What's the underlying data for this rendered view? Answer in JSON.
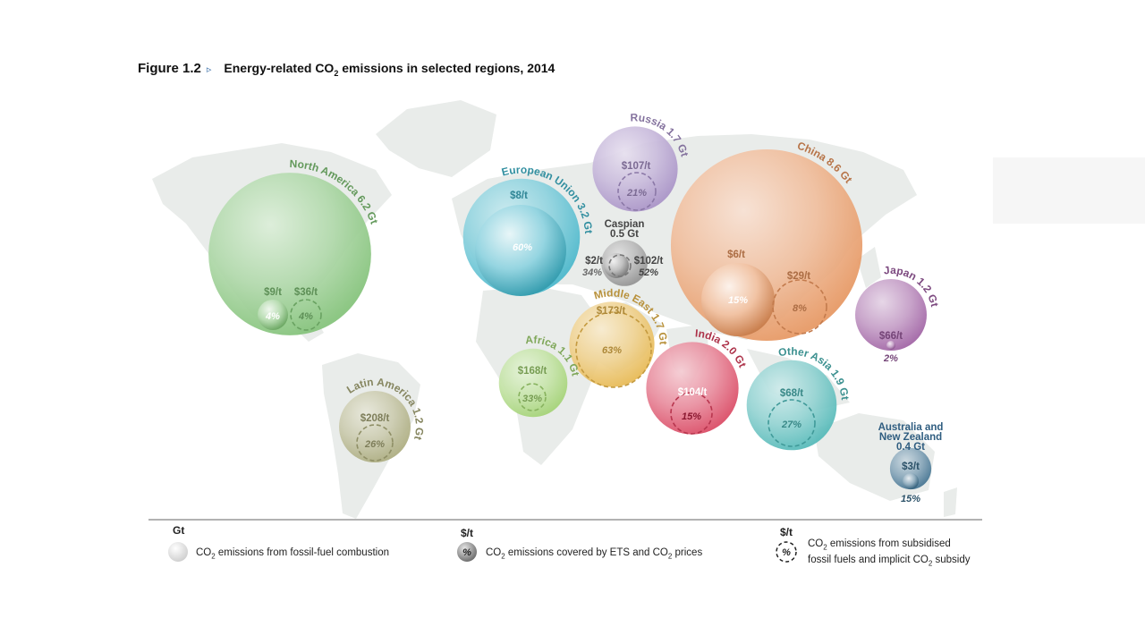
{
  "figure": {
    "label": "Figure 1.2",
    "arrow": "▹",
    "title_pre": "Energy-related CO",
    "title_sub": "2",
    "title_post": " emissions in selected regions, 2014"
  },
  "chart_data": {
    "type": "bubble-map",
    "title": "Energy-related CO2 emissions in selected regions, 2014",
    "units": {
      "emissions": "Gt",
      "price": "$/t"
    },
    "regions": [
      {
        "name": "North America",
        "emissions_gt": 6.2,
        "label": "North America 6.2 Gt",
        "ets_price": "$9/t",
        "ets_share": "4%",
        "subsidy": "$36/t",
        "subsidy_share": "4%",
        "color": "#7cbf72"
      },
      {
        "name": "European Union",
        "emissions_gt": 3.2,
        "label": "European Union 3.2 Gt",
        "ets_price": "$8/t",
        "ets_share": "60%",
        "subsidy": "",
        "subsidy_share": "",
        "color": "#3fb3c8"
      },
      {
        "name": "Russia",
        "emissions_gt": 1.7,
        "label": "Russia 1.7 Gt",
        "ets_price": "",
        "ets_share": "",
        "subsidy": "$107/t",
        "subsidy_share": "21%",
        "color": "#a48dc4"
      },
      {
        "name": "Caspian",
        "emissions_gt": 0.5,
        "label_l1": "Caspian",
        "label_l2": "0.5 Gt",
        "ets_price": "$2/t",
        "ets_share": "34%",
        "subsidy": "$102/t",
        "subsidy_share": "52%",
        "color": "#8c8c8c"
      },
      {
        "name": "China",
        "emissions_gt": 8.6,
        "label": "China 8.6 Gt",
        "ets_price": "$6/t",
        "ets_share": "15%",
        "subsidy": "$29/t",
        "subsidy_share": "8%",
        "color": "#e5915a"
      },
      {
        "name": "Japan",
        "emissions_gt": 1.2,
        "label": "Japan 1.2 Gt",
        "ets_price": "$66/t",
        "ets_share": "2%",
        "subsidy": "",
        "subsidy_share": "",
        "color": "#9b5b9f"
      },
      {
        "name": "Middle East",
        "emissions_gt": 1.7,
        "label": "Middle East 1.7 Gt",
        "ets_price": "",
        "ets_share": "",
        "subsidy": "$173/t",
        "subsidy_share": "63%",
        "color": "#e6b54a"
      },
      {
        "name": "Africa",
        "emissions_gt": 1.1,
        "label": "Africa 1.1 Gt",
        "ets_price": "",
        "ets_share": "",
        "subsidy": "$168/t",
        "subsidy_share": "33%",
        "color": "#9fd16f"
      },
      {
        "name": "India",
        "emissions_gt": 2.0,
        "label": "India 2.0 Gt",
        "ets_price": "",
        "ets_share": "",
        "subsidy": "$104/t",
        "subsidy_share": "15%",
        "color": "#d8405c"
      },
      {
        "name": "Other Asia",
        "emissions_gt": 1.9,
        "label": "Other Asia 1.9 Gt",
        "ets_price": "",
        "ets_share": "",
        "subsidy": "$68/t",
        "subsidy_share": "27%",
        "color": "#4bb5b4"
      },
      {
        "name": "Latin America",
        "emissions_gt": 1.2,
        "label": "Latin America 1.2 Gt",
        "ets_price": "",
        "ets_share": "",
        "subsidy": "$208/t",
        "subsidy_share": "26%",
        "color": "#a8a878"
      },
      {
        "name": "Australia and New Zealand",
        "emissions_gt": 0.4,
        "label_l1": "Australia and",
        "label_l2": "New Zealand",
        "label_l3": "0.4 Gt",
        "ets_price": "$3/t",
        "ets_share": "15%",
        "subsidy": "",
        "subsidy_share": "",
        "color": "#3a6d8c"
      }
    ]
  },
  "legend": {
    "head_gt": "Gt",
    "head_price1": "$/t",
    "head_price2": "$/t",
    "symbol_pct": "%",
    "item1_pre": "CO",
    "item1_sub": "2",
    "item1_post": " emissions from fossil-fuel combustion",
    "item2_pre": "CO",
    "item2_sub": "2",
    "item2_mid": " emissions covered by ETS and CO",
    "item2_sub2": "2",
    "item2_post": " prices",
    "item3_line1_pre": "CO",
    "item3_line1_sub": "2",
    "item3_line1_post": " emissions from subsidised",
    "item3_line2_pre": "fossil fuels and implicit CO",
    "item3_line2_sub": "2",
    "item3_line2_post": " subsidy"
  }
}
